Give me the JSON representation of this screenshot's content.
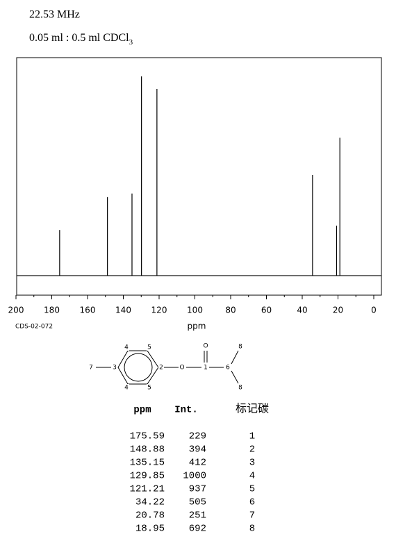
{
  "header": {
    "frequency": "22.53 MHz",
    "sample": "0.05 ml : 0.5 ml CDCl",
    "sample_subscript": "3"
  },
  "chart_data": {
    "type": "spectrum",
    "code": "CDS-02-072",
    "xlabel": "ppm",
    "x": [
      175.59,
      148.88,
      135.15,
      129.85,
      121.21,
      34.22,
      20.78,
      18.95
    ],
    "values": [
      229,
      394,
      412,
      1000,
      937,
      505,
      251,
      692
    ],
    "color": "#000000",
    "xlim": [
      200,
      0
    ],
    "xticks": [
      200,
      180,
      160,
      140,
      120,
      100,
      80,
      60,
      40,
      20,
      0
    ],
    "ylim": [
      -98,
      1094
    ]
  },
  "structure": {
    "labels": [
      "4",
      "5",
      "7",
      "3",
      "2",
      "4",
      "5",
      "O",
      "1",
      "O",
      "6",
      "8",
      "8"
    ]
  },
  "table": {
    "header": [
      "ppm",
      "Int.",
      "标记碳"
    ],
    "carbon": [
      "1",
      "2",
      "3",
      "4",
      "5",
      "6",
      "7",
      "8"
    ]
  }
}
